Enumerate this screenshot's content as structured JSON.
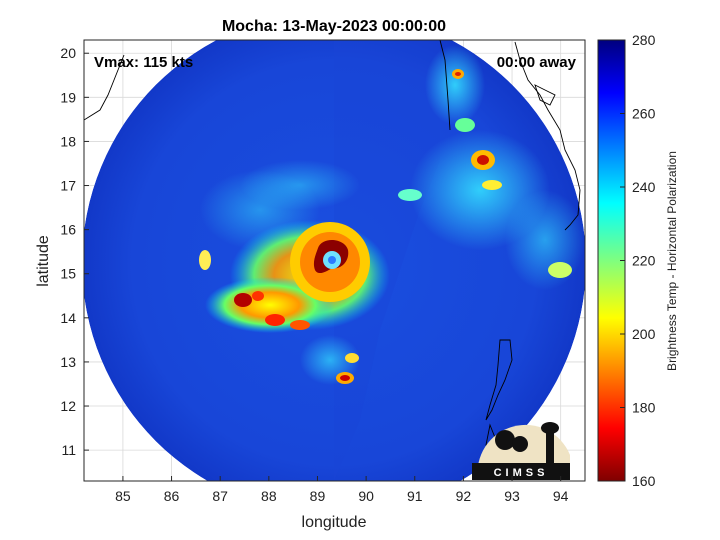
{
  "title": "Mocha: 13-May-2023 00:00:00",
  "vmax_label": "Vmax: 115 kts",
  "time_label": "00:00 away",
  "xlabel": "longitude",
  "ylabel": "latitude",
  "colorbar_label": "Brightness Temp - Horizontal Polarization",
  "logo_text": "CIMSS",
  "x_ticks": [
    "85",
    "86",
    "87",
    "88",
    "89",
    "90",
    "91",
    "92",
    "93",
    "94"
  ],
  "y_ticks": [
    "11",
    "12",
    "13",
    "14",
    "15",
    "16",
    "17",
    "18",
    "19",
    "20"
  ],
  "colorbar_ticks": [
    "280",
    "260",
    "240",
    "220",
    "200",
    "180",
    "160"
  ],
  "chart_data": {
    "type": "heatmap",
    "title": "Mocha: 13-May-2023 00:00:00",
    "xlabel": "longitude",
    "ylabel": "latitude",
    "xlim": [
      84.2,
      94.5
    ],
    "ylim": [
      10.3,
      20.3
    ],
    "grid": true,
    "colorbar": {
      "label": "Brightness Temp - Horizontal Polarization",
      "range": [
        160,
        280
      ],
      "colormap": "jet"
    },
    "swath_center": [
      89.3,
      15.3
    ],
    "storm_center": [
      89.3,
      15.2
    ],
    "features": [
      {
        "name": "eye",
        "lon": 89.35,
        "lat": 15.2,
        "tb": 255
      },
      {
        "name": "eyewall",
        "lon": 89.2,
        "lat": 15.3,
        "tb": 165
      },
      {
        "name": "inner-band",
        "lon": 88.6,
        "lat": 14.5,
        "tb": 190
      },
      {
        "name": "outer-band-west",
        "lon": 87.6,
        "lat": 14.4,
        "tb": 175
      },
      {
        "name": "band-south",
        "lon": 89.6,
        "lat": 12.6,
        "tb": 180
      },
      {
        "name": "band-east",
        "lon": 92.5,
        "lat": 17.5,
        "tb": 185
      },
      {
        "name": "coastal-band",
        "lon": 92.1,
        "lat": 19.8,
        "tb": 195
      }
    ],
    "annotations": [
      "Vmax: 115 kts",
      "00:00 away"
    ]
  }
}
